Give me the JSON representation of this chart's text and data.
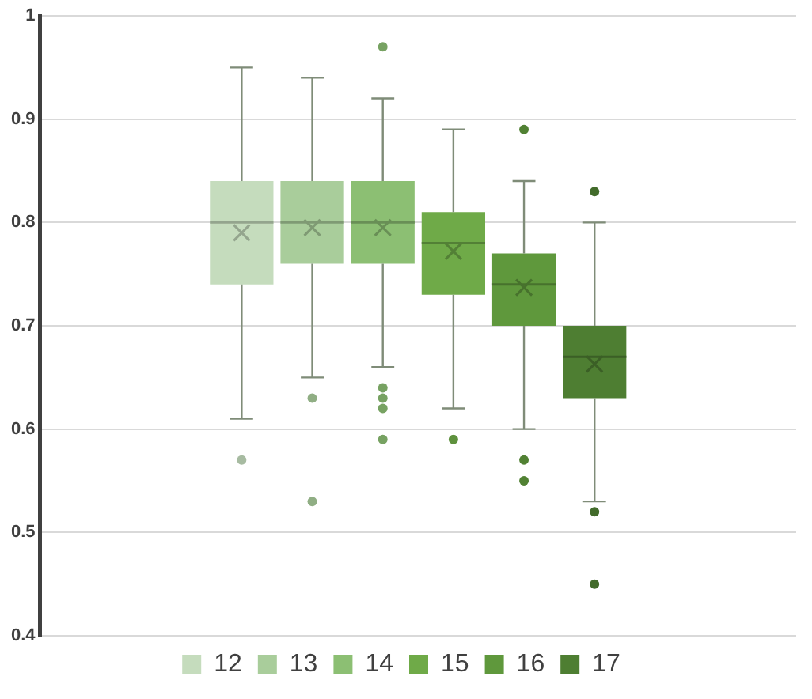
{
  "chart_data": {
    "type": "box",
    "categories": [
      null
    ],
    "ylim": [
      0.4,
      1
    ],
    "yticks": [
      0.4,
      0.5,
      0.6,
      0.7,
      0.8,
      0.9,
      1
    ],
    "grid": "y",
    "legend": "bottom",
    "tick_labels": "y",
    "series": [
      {
        "name": "12",
        "color": "#c5dcbd",
        "boxes": [
          {
            "low": 0.61,
            "q1": 0.74,
            "median": 0.8,
            "q3": 0.84,
            "high": 0.95,
            "mean": 0.79,
            "outliers": [
              0.57
            ]
          }
        ]
      },
      {
        "name": "13",
        "color": "#a9cd9b",
        "boxes": [
          {
            "low": 0.65,
            "q1": 0.76,
            "median": 0.8,
            "q3": 0.84,
            "high": 0.94,
            "mean": 0.795,
            "outliers": [
              0.63,
              0.53
            ]
          }
        ]
      },
      {
        "name": "14",
        "color": "#8cbf73",
        "boxes": [
          {
            "low": 0.66,
            "q1": 0.76,
            "median": 0.8,
            "q3": 0.84,
            "high": 0.92,
            "mean": 0.795,
            "outliers": [
              0.97,
              0.64,
              0.63,
              0.62,
              0.59
            ]
          }
        ]
      },
      {
        "name": "15",
        "color": "#6faa48",
        "boxes": [
          {
            "low": 0.62,
            "q1": 0.73,
            "median": 0.78,
            "q3": 0.81,
            "high": 0.89,
            "mean": 0.772,
            "outliers": [
              0.59
            ]
          }
        ]
      },
      {
        "name": "16",
        "color": "#5f983c",
        "boxes": [
          {
            "low": 0.6,
            "q1": 0.7,
            "median": 0.74,
            "q3": 0.77,
            "high": 0.84,
            "mean": 0.737,
            "outliers": [
              0.89,
              0.57,
              0.55
            ]
          }
        ]
      },
      {
        "name": "17",
        "color": "#4e7e32",
        "boxes": [
          {
            "low": 0.53,
            "q1": 0.63,
            "median": 0.67,
            "q3": 0.7,
            "high": 0.8,
            "mean": 0.663,
            "outliers": [
              0.83,
              0.52,
              0.45
            ]
          }
        ]
      }
    ]
  }
}
